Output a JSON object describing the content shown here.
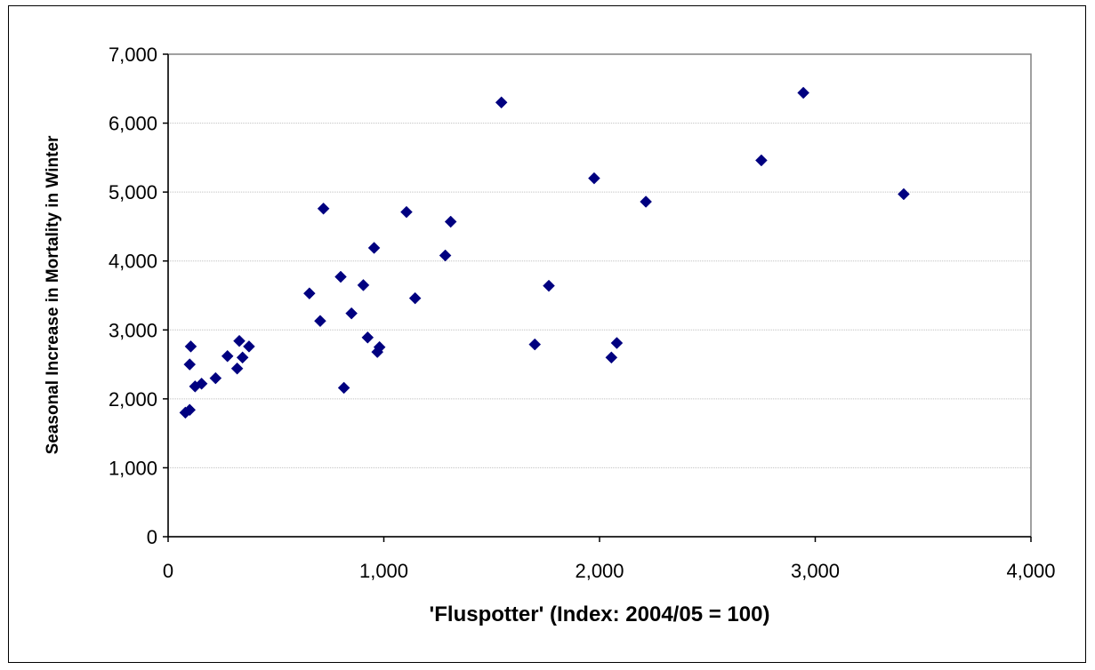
{
  "chart_data": {
    "type": "scatter",
    "title": "",
    "xlabel": "'Fluspotter' (Index: 2004/05 = 100)",
    "ylabel": "Seasonal Increase in Mortality in Winter",
    "xlim": [
      0,
      4000
    ],
    "ylim": [
      0,
      7000
    ],
    "x_ticks": [
      0,
      1000,
      2000,
      3000,
      4000
    ],
    "x_tick_labels": [
      "0",
      "1,000",
      "2,000",
      "3,000",
      "4,000"
    ],
    "y_ticks": [
      0,
      1000,
      2000,
      3000,
      4000,
      5000,
      6000,
      7000
    ],
    "y_tick_labels": [
      "0",
      "1,000",
      "2,000",
      "3,000",
      "4,000",
      "5,000",
      "6,000",
      "7,000"
    ],
    "grid": "horizontal",
    "legend": "none",
    "marker": "diamond",
    "colors": {
      "marker": "#000080",
      "grid": "#c0c0c0",
      "plot_border": "#808080",
      "axis": "#000000"
    },
    "points": [
      [
        80,
        1800
      ],
      [
        100,
        1840
      ],
      [
        100,
        2500
      ],
      [
        105,
        2760
      ],
      [
        125,
        2180
      ],
      [
        155,
        2220
      ],
      [
        220,
        2300
      ],
      [
        275,
        2620
      ],
      [
        320,
        2440
      ],
      [
        330,
        2840
      ],
      [
        345,
        2600
      ],
      [
        375,
        2760
      ],
      [
        655,
        3530
      ],
      [
        705,
        3130
      ],
      [
        720,
        4760
      ],
      [
        800,
        3770
      ],
      [
        815,
        2160
      ],
      [
        850,
        3240
      ],
      [
        905,
        3650
      ],
      [
        925,
        2890
      ],
      [
        955,
        4190
      ],
      [
        970,
        2680
      ],
      [
        980,
        2750
      ],
      [
        1105,
        4710
      ],
      [
        1145,
        3460
      ],
      [
        1285,
        4080
      ],
      [
        1310,
        4570
      ],
      [
        1545,
        6300
      ],
      [
        1700,
        2790
      ],
      [
        1765,
        3640
      ],
      [
        1975,
        5200
      ],
      [
        2055,
        2600
      ],
      [
        2080,
        2810
      ],
      [
        2215,
        4860
      ],
      [
        2750,
        5460
      ],
      [
        2945,
        6440
      ],
      [
        3410,
        4970
      ]
    ]
  }
}
